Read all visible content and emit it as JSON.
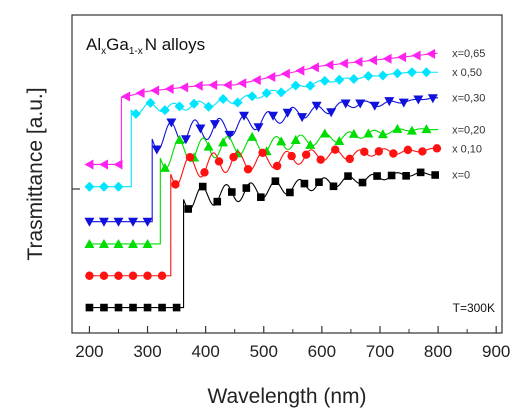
{
  "chart_data": {
    "type": "line",
    "title": "",
    "xlabel": "Wavelength (nm)",
    "ylabel": "Trasmittance [a.u.]",
    "xlim": [
      170,
      910
    ],
    "ylim": [
      0,
      100
    ],
    "xticks": [
      "200",
      "300",
      "400",
      "500",
      "600",
      "700",
      "800",
      "900"
    ],
    "xtick_values": [
      200,
      300,
      400,
      500,
      600,
      700,
      800,
      900
    ],
    "grid": false,
    "annotations": {
      "alloy_main": "Al",
      "alloy_sub1": "x",
      "alloy_mid": "Ga",
      "alloy_sub2": "1-x",
      "alloy_tail": "N alloys",
      "temperature": "T=300K"
    },
    "series": [
      {
        "name": "x=0.65",
        "label": "x=0,65",
        "color": "#ff22ee",
        "marker": "triangle-left",
        "edge": 255,
        "low": 53,
        "high": [
          [
            255,
            74
          ],
          [
            300,
            76
          ],
          [
            350,
            77
          ],
          [
            400,
            78
          ],
          [
            450,
            78
          ],
          [
            500,
            80
          ],
          [
            550,
            82
          ],
          [
            600,
            84
          ],
          [
            650,
            85
          ],
          [
            700,
            86
          ],
          [
            750,
            87
          ],
          [
            800,
            88
          ]
        ],
        "osc": 0
      },
      {
        "name": "x=0.50",
        "label": "x 0,50",
        "color": "#00e5ff",
        "marker": "diamond",
        "edge": 272,
        "low": 46,
        "high": [
          [
            272,
            70
          ],
          [
            300,
            71
          ],
          [
            350,
            71
          ],
          [
            400,
            72
          ],
          [
            450,
            73
          ],
          [
            500,
            75
          ],
          [
            550,
            77
          ],
          [
            600,
            79
          ],
          [
            650,
            80
          ],
          [
            700,
            81
          ],
          [
            750,
            82
          ],
          [
            800,
            82
          ]
        ],
        "osc": 1.5
      },
      {
        "name": "x=0.30",
        "label": "x=0,30",
        "color": "#1111dd",
        "marker": "triangle-down",
        "edge": 308,
        "low": 35,
        "high": [
          [
            308,
            61
          ],
          [
            350,
            63
          ],
          [
            400,
            64
          ],
          [
            450,
            65
          ],
          [
            500,
            67
          ],
          [
            550,
            69
          ],
          [
            600,
            70
          ],
          [
            650,
            72
          ],
          [
            700,
            72
          ],
          [
            750,
            73
          ],
          [
            800,
            74
          ]
        ],
        "osc": 4
      },
      {
        "name": "x=0.20",
        "label": "x=0,20",
        "color": "#00dd00",
        "marker": "triangle-up",
        "edge": 322,
        "low": 28,
        "high": [
          [
            322,
            55
          ],
          [
            350,
            57
          ],
          [
            400,
            58
          ],
          [
            450,
            59
          ],
          [
            500,
            59
          ],
          [
            550,
            60
          ],
          [
            600,
            61
          ],
          [
            650,
            62
          ],
          [
            700,
            63
          ],
          [
            750,
            64
          ],
          [
            800,
            64
          ]
        ],
        "osc": 4
      },
      {
        "name": "x=0.10",
        "label": "x 0,10",
        "color": "#ff1111",
        "marker": "circle",
        "edge": 340,
        "low": 18,
        "high": [
          [
            340,
            50
          ],
          [
            380,
            52
          ],
          [
            400,
            53
          ],
          [
            450,
            54
          ],
          [
            500,
            54
          ],
          [
            550,
            55
          ],
          [
            600,
            56
          ],
          [
            650,
            56
          ],
          [
            700,
            57
          ],
          [
            750,
            57
          ],
          [
            800,
            58
          ]
        ],
        "osc": 4
      },
      {
        "name": "x=0",
        "label": "x=0",
        "color": "#000000",
        "marker": "square",
        "edge": 362,
        "low": 8,
        "high": [
          [
            362,
            42
          ],
          [
            400,
            43
          ],
          [
            450,
            44
          ],
          [
            500,
            45
          ],
          [
            550,
            46
          ],
          [
            600,
            47
          ],
          [
            650,
            48
          ],
          [
            700,
            49
          ],
          [
            750,
            50
          ],
          [
            800,
            50
          ]
        ],
        "osc": 3.5
      }
    ]
  }
}
